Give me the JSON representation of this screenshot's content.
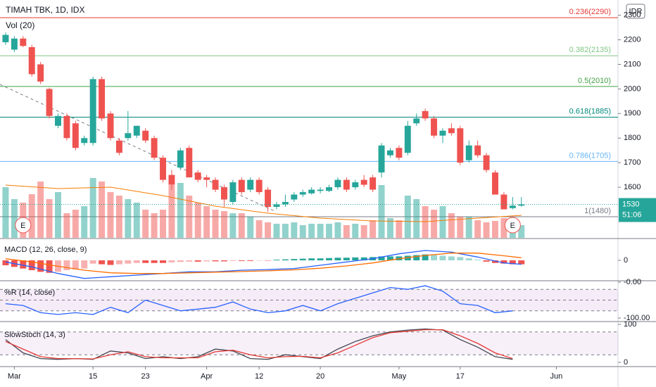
{
  "header": {
    "symbol": "TIMAH TBK, 1D, IDX",
    "volume_label": "Vol (20)",
    "currency": "IDR"
  },
  "chart_data": [
    {
      "type": "candlestick",
      "up_color": "#26a69a",
      "down_color": "#ef5350",
      "open": [
        2190,
        2160,
        2205,
        2170,
        2100,
        2000,
        1850,
        1890,
        1860,
        1780,
        1780,
        2040,
        1900,
        1790,
        1800,
        1810,
        1830,
        1800,
        1720,
        1650,
        1680,
        1760,
        1660,
        1640,
        1630,
        1600,
        1540,
        1630,
        1590,
        1630,
        1590,
        1520,
        1530,
        1550,
        1570,
        1575,
        1585,
        1585,
        1600,
        1630,
        1600,
        1630,
        1640,
        1660,
        1730,
        1760,
        1740,
        1860,
        1910,
        1880,
        1810,
        1840,
        1840,
        1710,
        1770,
        1730,
        1660,
        1570,
        1515,
        1525
      ],
      "high": [
        2230,
        2215,
        2215,
        2180,
        2110,
        2005,
        1900,
        1900,
        1870,
        1810,
        2050,
        2050,
        1910,
        1800,
        1910,
        1850,
        1840,
        1810,
        1730,
        1670,
        1760,
        1770,
        1670,
        1650,
        1640,
        1610,
        1630,
        1640,
        1640,
        1640,
        1600,
        1540,
        1570,
        1580,
        1590,
        1600,
        1600,
        1610,
        1640,
        1640,
        1630,
        1650,
        1650,
        1780,
        1760,
        1770,
        1870,
        1900,
        1920,
        1890,
        1840,
        1860,
        1850,
        1790,
        1790,
        1740,
        1670,
        1580,
        1560,
        1560
      ],
      "low": [
        2180,
        2150,
        2170,
        2050,
        2020,
        1880,
        1840,
        1790,
        1750,
        1770,
        1770,
        1870,
        1790,
        1730,
        1790,
        1800,
        1780,
        1710,
        1620,
        1590,
        1670,
        1640,
        1620,
        1600,
        1580,
        1520,
        1530,
        1570,
        1580,
        1570,
        1500,
        1510,
        1520,
        1540,
        1560,
        1570,
        1575,
        1580,
        1590,
        1580,
        1590,
        1600,
        1580,
        1640,
        1720,
        1710,
        1730,
        1850,
        1870,
        1800,
        1780,
        1810,
        1690,
        1700,
        1720,
        1660,
        1570,
        1510,
        1510,
        1520
      ],
      "close": [
        2220,
        2205,
        2175,
        2060,
        2030,
        1890,
        1890,
        1800,
        1760,
        1800,
        2040,
        1880,
        1800,
        1740,
        1820,
        1850,
        1790,
        1720,
        1630,
        1610,
        1750,
        1640,
        1630,
        1630,
        1590,
        1550,
        1620,
        1580,
        1630,
        1580,
        1520,
        1530,
        1540,
        1570,
        1580,
        1590,
        1590,
        1600,
        1630,
        1590,
        1620,
        1610,
        1590,
        1770,
        1750,
        1720,
        1850,
        1880,
        1880,
        1810,
        1830,
        1820,
        1700,
        1770,
        1730,
        1670,
        1570,
        1510,
        1525,
        1530
      ],
      "volume": [
        72,
        55,
        50,
        62,
        80,
        55,
        65,
        35,
        40,
        45,
        85,
        80,
        65,
        60,
        55,
        50,
        40,
        35,
        40,
        75,
        78,
        60,
        50,
        45,
        40,
        38,
        35,
        35,
        30,
        25,
        22,
        20,
        20,
        22,
        18,
        20,
        20,
        20,
        22,
        18,
        20,
        18,
        25,
        75,
        28,
        25,
        60,
        55,
        45,
        40,
        45,
        35,
        30,
        30,
        25,
        22,
        24,
        28,
        20,
        18
      ],
      "vol_ma": {
        "color": "#f57c00",
        "x": [
          0,
          6,
          12,
          18,
          24,
          30,
          36,
          42,
          48,
          54,
          59
        ],
        "values": [
          75,
          70,
          72,
          60,
          45,
          35,
          28,
          24,
          23,
          28,
          32
        ]
      },
      "ylim": [
        1394,
        2362
      ],
      "yticks": [
        1600,
        1700,
        1800,
        1900,
        2000,
        2100,
        2200,
        2300
      ],
      "xlim": [
        -0.64,
        70.05
      ],
      "x_labels": [
        {
          "value": 1,
          "label": "Mar"
        },
        {
          "value": 10,
          "label": "15"
        },
        {
          "value": 16,
          "label": "23"
        },
        {
          "value": 23,
          "label": "Apr"
        },
        {
          "value": 29,
          "label": "12"
        },
        {
          "value": 36,
          "label": "20"
        },
        {
          "value": 45,
          "label": "May"
        },
        {
          "value": 52,
          "label": "17"
        },
        {
          "value": 63,
          "label": "Jun"
        }
      ],
      "fib_levels": [
        {
          "label": "0.236(2290)",
          "value": 2290,
          "color": "#e53935"
        },
        {
          "label": "0.382(2135)",
          "value": 2135,
          "color": "#81c784"
        },
        {
          "label": "0.5(2010)",
          "value": 2010,
          "color": "#43a047"
        },
        {
          "label": "0.618(1885)",
          "value": 1885,
          "color": "#00897b"
        },
        {
          "label": "0.786(1705)",
          "value": 1705,
          "color": "#64b5f6"
        },
        {
          "label": "1(1480)",
          "value": 1480,
          "color": "#787b86"
        }
      ],
      "last_price": 1530,
      "countdown": "51:06",
      "events": [
        {
          "x": 2,
          "label": "E"
        },
        {
          "x": 58,
          "label": "E"
        }
      ]
    },
    {
      "type": "macd",
      "title": "MACD (12, 26, close, 9)",
      "ylim": [
        -60,
        60
      ],
      "yticks": [
        0
      ],
      "histogram": [
        -15,
        -20,
        -25,
        -30,
        -35,
        -38,
        -35,
        -30,
        -28,
        -25,
        -10,
        -12,
        -14,
        -12,
        -10,
        -8,
        -8,
        -8,
        -8,
        -6,
        -5,
        -4,
        -4,
        -3,
        -3,
        -3,
        -2,
        -2,
        -2,
        -1,
        -1,
        2,
        3,
        4,
        5,
        6,
        6,
        7,
        8,
        8,
        9,
        9,
        10,
        12,
        12,
        12,
        14,
        16,
        18,
        16,
        14,
        12,
        10,
        6,
        2,
        -4,
        -8,
        -10,
        -12,
        -12
      ],
      "up_color": "#26a69a",
      "down_color": "#ef5350",
      "series": [
        {
          "color": "#2962ff",
          "x": [
            0,
            3,
            6,
            9,
            12,
            15,
            18,
            21,
            24,
            27,
            30,
            33,
            36,
            39,
            42,
            45,
            48,
            51,
            54,
            57,
            59
          ],
          "values": [
            -5,
            -20,
            -40,
            -55,
            -50,
            -45,
            -40,
            -35,
            -35,
            -30,
            -28,
            -25,
            -15,
            -5,
            5,
            20,
            30,
            25,
            10,
            -8,
            -12
          ]
        },
        {
          "color": "#ff6d00",
          "x": [
            0,
            3,
            6,
            9,
            12,
            15,
            18,
            21,
            24,
            27,
            30,
            33,
            36,
            39,
            42,
            45,
            48,
            51,
            54,
            57,
            59
          ],
          "values": [
            5,
            -5,
            -18,
            -30,
            -38,
            -40,
            -40,
            -38,
            -36,
            -34,
            -32,
            -29,
            -24,
            -17,
            -8,
            5,
            15,
            22,
            22,
            14,
            8
          ]
        }
      ]
    },
    {
      "type": "line",
      "title": "%R (14, close)",
      "ylim": [
        -100,
        0
      ],
      "yticks": [
        {
          "value": 0,
          "label": "-0.00"
        },
        {
          "value": -100,
          "label": "-100.00"
        }
      ],
      "bands": [
        -20,
        -50,
        -80
      ],
      "band_fill": "rgba(156,39,176,0.09)",
      "series": [
        {
          "color": "#2962ff",
          "x": [
            0,
            2,
            4,
            6,
            8,
            10,
            12,
            14,
            16,
            18,
            20,
            22,
            24,
            26,
            28,
            30,
            32,
            34,
            36,
            38,
            40,
            42,
            44,
            46,
            48,
            50,
            52,
            54,
            56,
            58
          ],
          "values": [
            -60,
            -65,
            -85,
            -90,
            -85,
            -90,
            -70,
            -85,
            -50,
            -65,
            -80,
            -75,
            -70,
            -55,
            -75,
            -85,
            -80,
            -65,
            -80,
            -60,
            -45,
            -30,
            -15,
            -20,
            -10,
            -25,
            -60,
            -65,
            -85,
            -80
          ]
        }
      ]
    },
    {
      "type": "line",
      "title": "SlowStoch (14, 3)",
      "ylim": [
        0,
        100
      ],
      "yticks": [
        0,
        100
      ],
      "bands": [
        20,
        80
      ],
      "band_fill": "rgba(156,39,176,0.07)",
      "series": [
        {
          "color": "#434651",
          "x": [
            0,
            2,
            4,
            6,
            8,
            10,
            12,
            14,
            16,
            18,
            20,
            22,
            24,
            26,
            28,
            30,
            32,
            34,
            36,
            38,
            40,
            42,
            44,
            46,
            48,
            50,
            52,
            54,
            56,
            58
          ],
          "values": [
            60,
            25,
            10,
            8,
            10,
            8,
            30,
            25,
            10,
            15,
            10,
            15,
            35,
            30,
            10,
            8,
            20,
            15,
            10,
            35,
            55,
            70,
            80,
            85,
            88,
            85,
            60,
            40,
            15,
            8
          ]
        },
        {
          "color": "#e53935",
          "x": [
            0,
            2,
            4,
            6,
            8,
            10,
            12,
            14,
            16,
            18,
            20,
            22,
            24,
            26,
            28,
            30,
            32,
            34,
            36,
            38,
            40,
            42,
            44,
            46,
            48,
            50,
            52,
            54,
            56,
            58
          ],
          "values": [
            55,
            35,
            15,
            10,
            10,
            9,
            20,
            28,
            15,
            12,
            12,
            12,
            28,
            32,
            20,
            12,
            15,
            16,
            12,
            25,
            45,
            65,
            78,
            82,
            86,
            86,
            70,
            50,
            25,
            10
          ]
        }
      ]
    }
  ]
}
